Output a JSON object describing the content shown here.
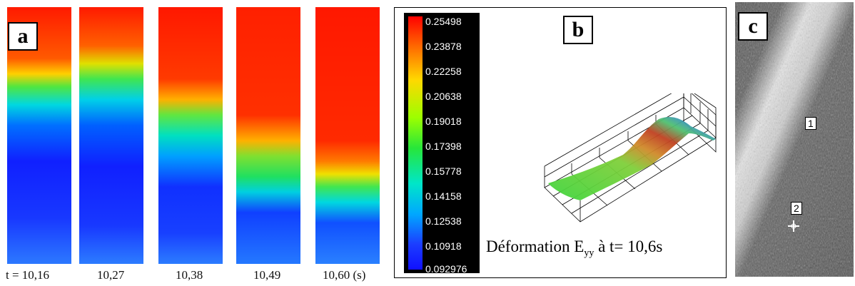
{
  "panel_a": {
    "label": "a",
    "time_labels": [
      "t = 10,16",
      "10,27",
      "10,38",
      "10,49",
      "10,60 (s)"
    ]
  },
  "panel_b": {
    "label": "b",
    "colorbar_ticks": [
      "0.25498",
      "0.23878",
      "0.22258",
      "0.20638",
      "0.19018",
      "0.17398",
      "0.15778",
      "0.14158",
      "0.12538",
      "0.10918",
      "0.092976"
    ],
    "caption_prefix": "Déformation E",
    "caption_sub": "yy",
    "caption_suffix": " à t= 10,6s"
  },
  "panel_c": {
    "label": "c",
    "marker_1": "1",
    "marker_2": "2"
  },
  "colors": {
    "high": "#ff0000",
    "mid_high": "#ffd800",
    "mid": "#27e63a",
    "mid_low": "#00e6c8",
    "low": "#1010ff"
  }
}
